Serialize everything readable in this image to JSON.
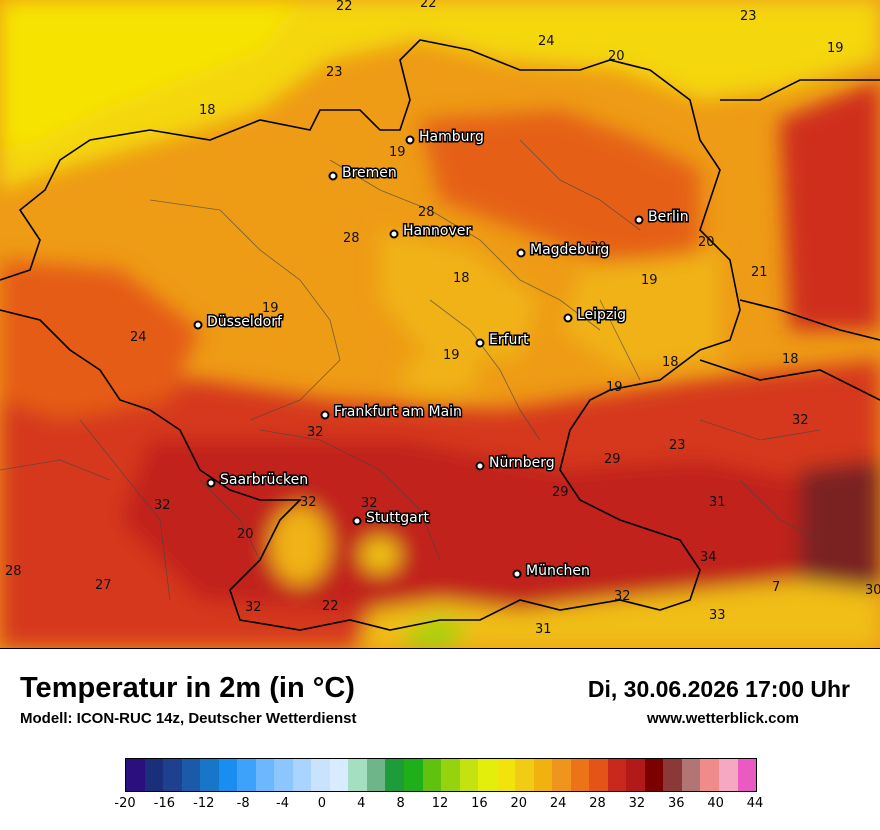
{
  "map": {
    "cities": [
      {
        "name": "Hamburg"
      },
      {
        "name": "Bremen"
      },
      {
        "name": "Hannover"
      },
      {
        "name": "Berlin"
      },
      {
        "name": "Magdeburg"
      },
      {
        "name": "Düsseldorf"
      },
      {
        "name": "Leipzig"
      },
      {
        "name": "Erfurt"
      },
      {
        "name": "Frankfurt am Main"
      },
      {
        "name": "Nürnberg"
      },
      {
        "name": "Saarbrücken"
      },
      {
        "name": "Stuttgart"
      },
      {
        "name": "München"
      }
    ],
    "values": [
      "22",
      "22",
      "23",
      "24",
      "20",
      "19",
      "18",
      "23",
      "19",
      "28",
      "28",
      "30",
      "20",
      "19",
      "21",
      "18",
      "19",
      "19",
      "24",
      "18",
      "18",
      "19",
      "23",
      "32",
      "32",
      "29",
      "29",
      "32",
      "31",
      "32",
      "32",
      "20",
      "34",
      "28",
      "27",
      "32",
      "32",
      "7",
      "30",
      "33",
      "31",
      "22"
    ]
  },
  "footer": {
    "title": "Temperatur in 2m (in °C)",
    "model": "Modell: ICON-RUC 14z, Deutscher Wetterdienst",
    "datetime": "Di, 30.06.2026 17:00 Uhr",
    "website": "www.wetterblick.com"
  },
  "legend": {
    "ticks": [
      "-20",
      "-16",
      "-12",
      "-8",
      "-4",
      "0",
      "4",
      "8",
      "12",
      "16",
      "20",
      "24",
      "28",
      "32",
      "36",
      "40",
      "44"
    ],
    "colors": [
      "#2c0f7e",
      "#1a2f7c",
      "#1f3f8f",
      "#1b5aa8",
      "#1876c9",
      "#1a8df0",
      "#3da2fa",
      "#6cb7ff",
      "#8cc6ff",
      "#a9d4ff",
      "#c9e3ff",
      "#d8ebff",
      "#a3dfc0",
      "#6fb58a",
      "#1e9c3a",
      "#1fb019",
      "#61c10f",
      "#95d30f",
      "#c4e20f",
      "#e3ef0a",
      "#f3e30d",
      "#f2cc12",
      "#f1b20f",
      "#ef941c",
      "#ec7317",
      "#e45417",
      "#c9281c",
      "#b21a1a",
      "#7c0000",
      "#8a3838",
      "#b37474",
      "#f08b8b",
      "#f6a8c3",
      "#eb5ac0"
    ]
  },
  "colors": {
    "map_background": "#ee9b16",
    "sea_coast": "#f2d80f",
    "north_yellow": "#f6e005",
    "hot_red": "#d83a14",
    "very_hot": "#b01b14"
  }
}
